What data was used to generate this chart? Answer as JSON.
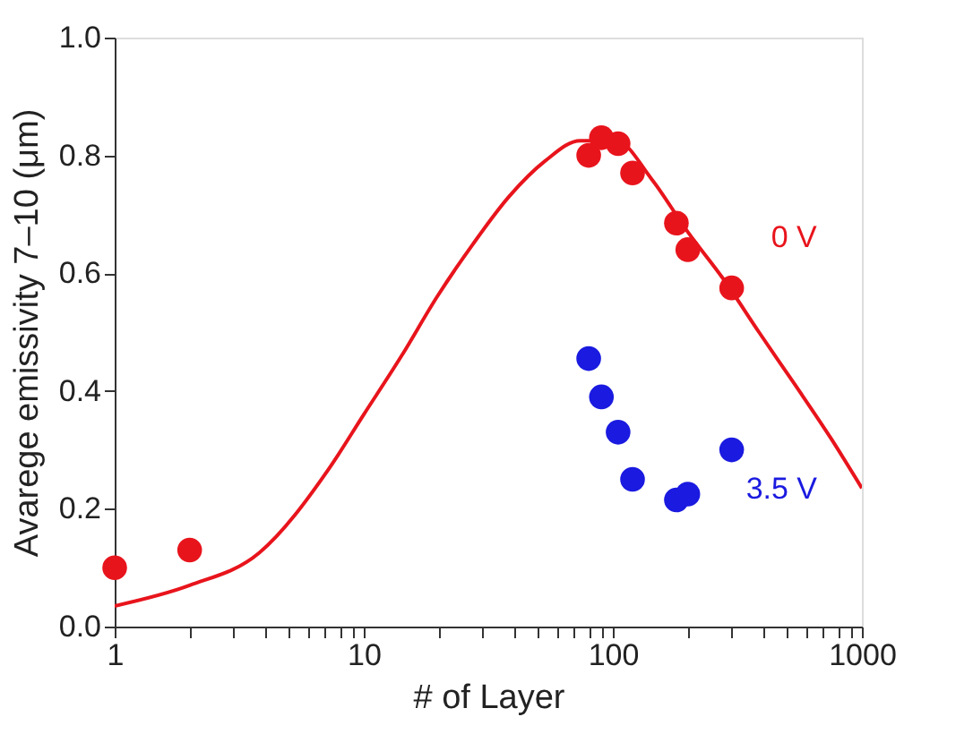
{
  "chart_data": {
    "type": "scatter",
    "xlabel": "# of Layer",
    "ylabel": "Avarege emissivity 7–10 (μm)",
    "log": "x",
    "grid": false,
    "marker": "circle",
    "xlim": [
      1,
      1000
    ],
    "ylim": [
      0,
      1.0
    ],
    "xticks": [
      1,
      {
        "value": 2,
        "label": null
      },
      {
        "value": 3,
        "label": null
      },
      {
        "value": 4,
        "label": null
      },
      {
        "value": 5,
        "label": null
      },
      {
        "value": 6,
        "label": null
      },
      {
        "value": 7,
        "label": null
      },
      {
        "value": 8,
        "label": null
      },
      {
        "value": 9,
        "label": null
      },
      10,
      {
        "value": 20,
        "label": null
      },
      {
        "value": 30,
        "label": null
      },
      {
        "value": 40,
        "label": null
      },
      {
        "value": 50,
        "label": null
      },
      {
        "value": 60,
        "label": null
      },
      {
        "value": 70,
        "label": null
      },
      {
        "value": 80,
        "label": null
      },
      {
        "value": 90,
        "label": null
      },
      100,
      {
        "value": 200,
        "label": null
      },
      {
        "value": 300,
        "label": null
      },
      {
        "value": 400,
        "label": null
      },
      {
        "value": 500,
        "label": null
      },
      {
        "value": 600,
        "label": null
      },
      {
        "value": 700,
        "label": null
      },
      {
        "value": 800,
        "label": null
      },
      {
        "value": 900,
        "label": null
      },
      1000
    ],
    "yticks": [
      {
        "value": 0,
        "label": "0.0"
      },
      0.2,
      0.4,
      0.6,
      0.8,
      {
        "value": 1.0,
        "label": "1.0"
      }
    ],
    "series": [
      {
        "name": "0 V",
        "color": "#e8141c",
        "x": [
          1,
          2,
          80,
          90,
          105,
          120,
          180,
          200,
          300
        ],
        "values": [
          0.1,
          0.13,
          0.8,
          0.83,
          0.82,
          0.77,
          0.685,
          0.64,
          0.575
        ]
      },
      {
        "name": "3.5 V",
        "color": "#1a1ae0",
        "x": [
          80,
          90,
          105,
          120,
          180,
          200,
          300
        ],
        "values": [
          0.455,
          0.39,
          0.33,
          0.25,
          0.215,
          0.225,
          0.3
        ]
      },
      {
        "type": "line",
        "color": "#e8141c",
        "marker": "none",
        "line_style": "solid",
        "x": [
          1,
          2,
          3.8,
          7.3,
          10,
          14.2,
          19.7,
          27.5,
          38.3,
          53.3,
          74,
          103,
          143,
          200,
          278,
          386,
          540,
          750,
          1000
        ],
        "values": [
          0.035,
          0.07,
          0.125,
          0.27,
          0.36,
          0.46,
          0.56,
          0.65,
          0.73,
          0.79,
          0.825,
          0.825,
          0.76,
          0.67,
          0.59,
          0.5,
          0.41,
          0.32,
          0.235
        ]
      }
    ]
  }
}
